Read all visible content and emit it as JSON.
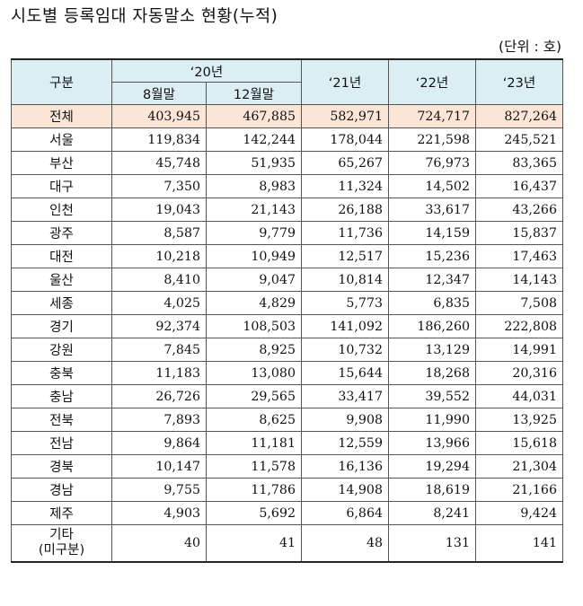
{
  "title": "시도별 등록임대 자동말소 현황(누적)",
  "unit": "(단위 : 호)",
  "header": {
    "region_col": "구분",
    "y20": "‘20년",
    "y20_aug": "8월말",
    "y20_dec": "12월말",
    "y21": "‘21년",
    "y22": "‘22년",
    "y23": "‘23년"
  },
  "rows": [
    {
      "region": "전체",
      "aug20": "403,945",
      "dec20": "467,885",
      "y21": "582,971",
      "y22": "724,717",
      "y23": "827,264"
    },
    {
      "region": "서울",
      "aug20": "119,834",
      "dec20": "142,244",
      "y21": "178,044",
      "y22": "221,598",
      "y23": "245,521"
    },
    {
      "region": "부산",
      "aug20": "45,748",
      "dec20": "51,935",
      "y21": "65,267",
      "y22": "76,973",
      "y23": "83,365"
    },
    {
      "region": "대구",
      "aug20": "7,350",
      "dec20": "8,983",
      "y21": "11,324",
      "y22": "14,502",
      "y23": "16,437"
    },
    {
      "region": "인천",
      "aug20": "19,043",
      "dec20": "21,143",
      "y21": "26,188",
      "y22": "33,617",
      "y23": "43,266"
    },
    {
      "region": "광주",
      "aug20": "8,587",
      "dec20": "9,779",
      "y21": "11,736",
      "y22": "14,159",
      "y23": "15,837"
    },
    {
      "region": "대전",
      "aug20": "10,218",
      "dec20": "10,949",
      "y21": "12,517",
      "y22": "15,236",
      "y23": "17,463"
    },
    {
      "region": "울산",
      "aug20": "8,410",
      "dec20": "9,047",
      "y21": "10,814",
      "y22": "12,347",
      "y23": "14,143"
    },
    {
      "region": "세종",
      "aug20": "4,025",
      "dec20": "4,829",
      "y21": "5,773",
      "y22": "6,835",
      "y23": "7,508"
    },
    {
      "region": "경기",
      "aug20": "92,374",
      "dec20": "108,503",
      "y21": "141,092",
      "y22": "186,260",
      "y23": "222,808"
    },
    {
      "region": "강원",
      "aug20": "7,845",
      "dec20": "8,925",
      "y21": "10,732",
      "y22": "13,129",
      "y23": "14,991"
    },
    {
      "region": "충북",
      "aug20": "11,183",
      "dec20": "13,080",
      "y21": "15,644",
      "y22": "18,268",
      "y23": "20,316"
    },
    {
      "region": "충남",
      "aug20": "26,726",
      "dec20": "29,565",
      "y21": "33,417",
      "y22": "39,552",
      "y23": "44,031"
    },
    {
      "region": "전북",
      "aug20": "7,893",
      "dec20": "8,625",
      "y21": "9,908",
      "y22": "11,990",
      "y23": "13,925"
    },
    {
      "region": "전남",
      "aug20": "9,864",
      "dec20": "11,181",
      "y21": "12,559",
      "y22": "13,966",
      "y23": "15,618"
    },
    {
      "region": "경북",
      "aug20": "10,147",
      "dec20": "11,578",
      "y21": "16,136",
      "y22": "19,294",
      "y23": "21,304"
    },
    {
      "region": "경남",
      "aug20": "9,755",
      "dec20": "11,786",
      "y21": "14,908",
      "y22": "18,619",
      "y23": "21,166"
    },
    {
      "region": "제주",
      "aug20": "4,903",
      "dec20": "5,692",
      "y21": "6,864",
      "y22": "8,241",
      "y23": "9,424"
    }
  ],
  "last_row": {
    "region_line1": "기타",
    "region_line2": "(미구분)",
    "aug20": "40",
    "dec20": "41",
    "y21": "48",
    "y22": "131",
    "y23": "141"
  }
}
